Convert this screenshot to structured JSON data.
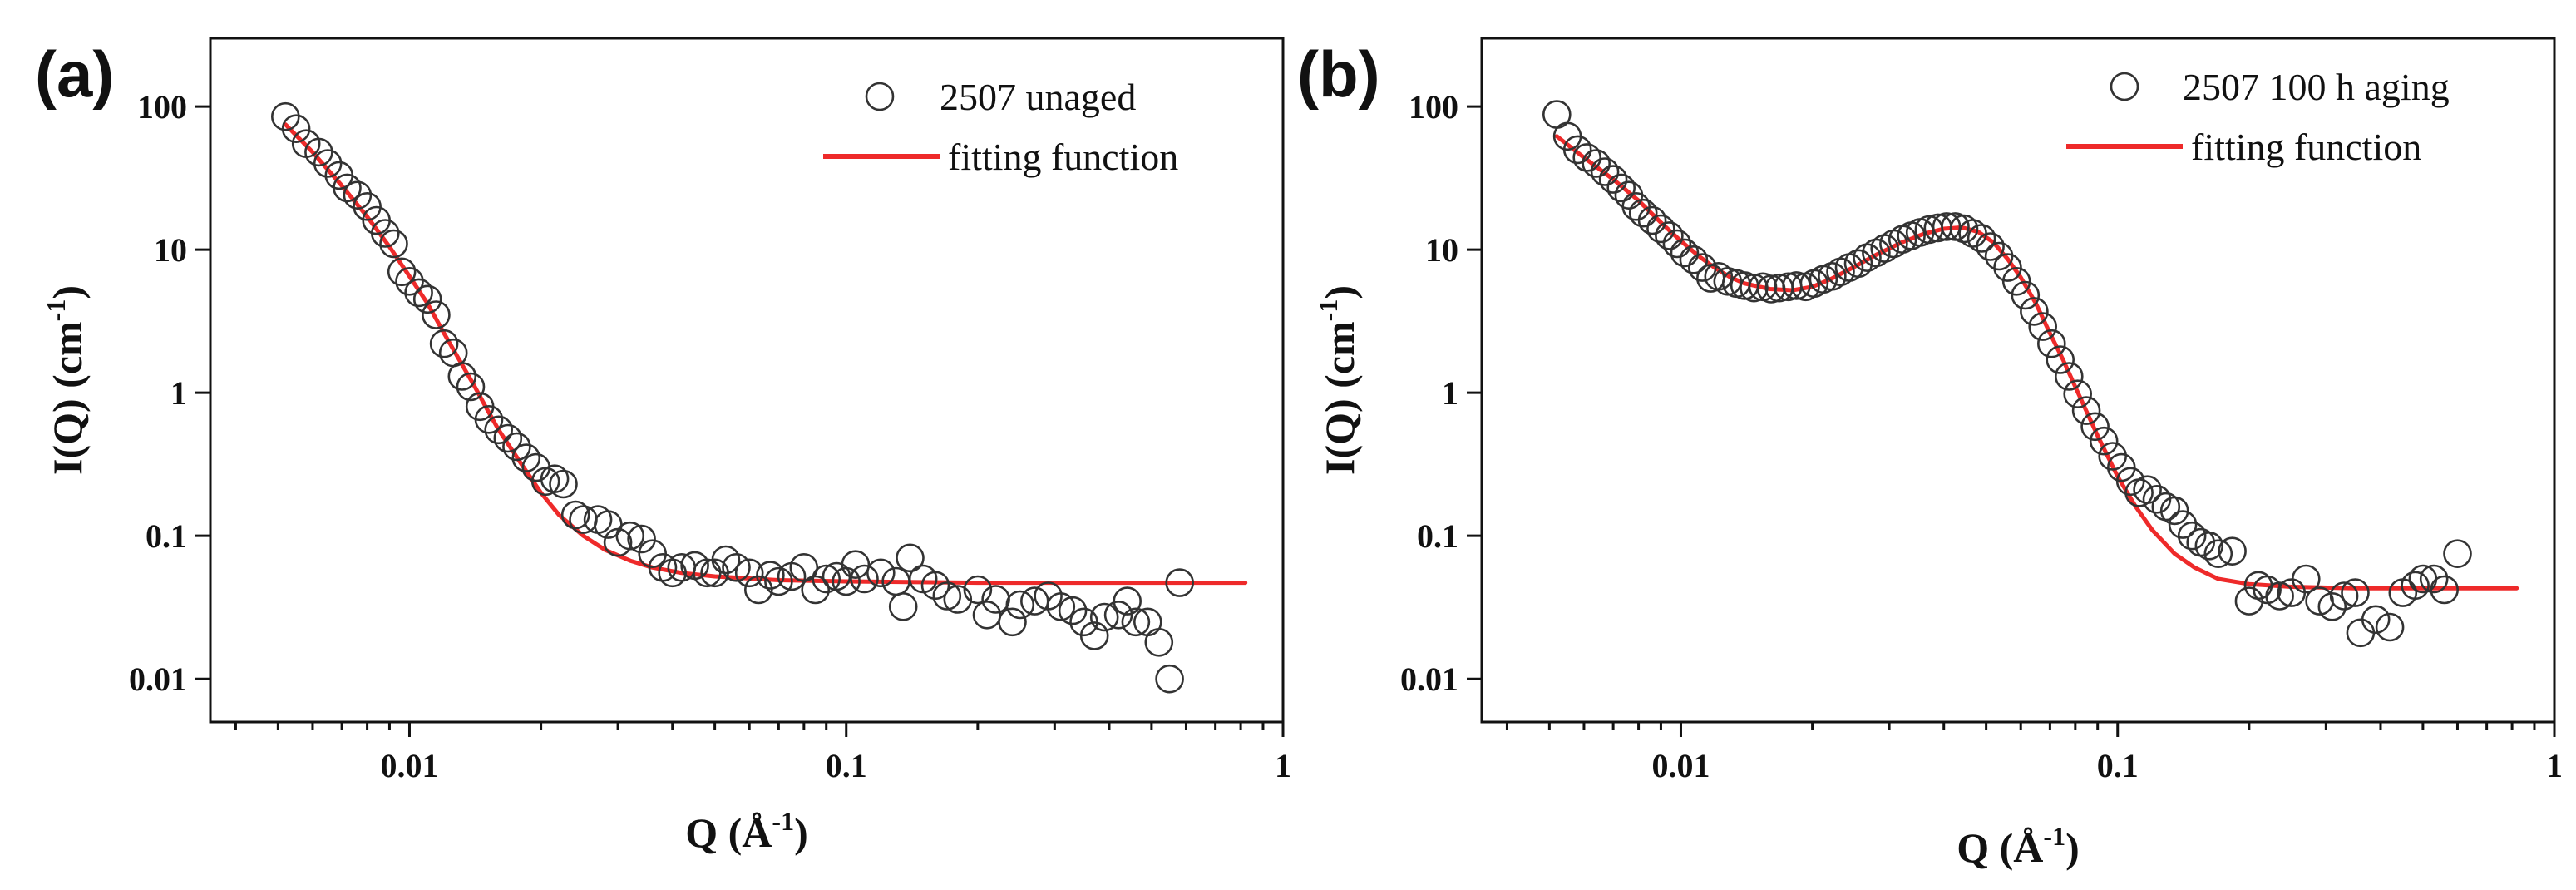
{
  "colors": {
    "fit": "#ee2a2a",
    "marker": "#333333",
    "axis": "#111111"
  },
  "chart_data": [
    {
      "type": "scatter",
      "panel_label": "(a)",
      "xscale": "log",
      "yscale": "log",
      "xlim": [
        0.0035,
        1.0
      ],
      "ylim": [
        0.005,
        300
      ],
      "xlabel": "Q (Å",
      "xlabel_sup": "-1",
      "xlabel_close": ")",
      "ylabel": "I(Q) (cm",
      "ylabel_sup": "-1",
      "ylabel_close": ")",
      "xticks": [
        0.01,
        0.1,
        1
      ],
      "xtick_labels": [
        "0.01",
        "0.1",
        "1"
      ],
      "yticks": [
        0.01,
        0.1,
        1,
        10,
        100
      ],
      "ytick_labels": [
        "0.01",
        "0.1",
        "1",
        "10",
        "100"
      ],
      "legend_position": "top-right",
      "series": [
        {
          "name": "2507 unaged",
          "kind": "markers",
          "points": [
            [
              0.0052,
              85
            ],
            [
              0.0055,
              70
            ],
            [
              0.0058,
              55
            ],
            [
              0.0062,
              48
            ],
            [
              0.0065,
              40
            ],
            [
              0.0069,
              33
            ],
            [
              0.0072,
              27
            ],
            [
              0.0076,
              24
            ],
            [
              0.008,
              20
            ],
            [
              0.0084,
              16
            ],
            [
              0.0088,
              13
            ],
            [
              0.0092,
              11
            ],
            [
              0.0096,
              7
            ],
            [
              0.01,
              6
            ],
            [
              0.0105,
              5
            ],
            [
              0.011,
              4.5
            ],
            [
              0.0115,
              3.5
            ],
            [
              0.012,
              2.2
            ],
            [
              0.0126,
              1.9
            ],
            [
              0.0132,
              1.3
            ],
            [
              0.0138,
              1.1
            ],
            [
              0.0145,
              0.8
            ],
            [
              0.0152,
              0.65
            ],
            [
              0.016,
              0.55
            ],
            [
              0.0168,
              0.48
            ],
            [
              0.0176,
              0.42
            ],
            [
              0.0185,
              0.35
            ],
            [
              0.0195,
              0.3
            ],
            [
              0.0205,
              0.24
            ],
            [
              0.0215,
              0.25
            ],
            [
              0.0225,
              0.23
            ],
            [
              0.024,
              0.14
            ],
            [
              0.025,
              0.13
            ],
            [
              0.027,
              0.13
            ],
            [
              0.0285,
              0.12
            ],
            [
              0.03,
              0.09
            ],
            [
              0.032,
              0.1
            ],
            [
              0.034,
              0.095
            ],
            [
              0.036,
              0.075
            ],
            [
              0.038,
              0.06
            ],
            [
              0.04,
              0.055
            ],
            [
              0.042,
              0.06
            ],
            [
              0.045,
              0.062
            ],
            [
              0.048,
              0.055
            ],
            [
              0.05,
              0.055
            ],
            [
              0.053,
              0.068
            ],
            [
              0.056,
              0.06
            ],
            [
              0.06,
              0.055
            ],
            [
              0.063,
              0.042
            ],
            [
              0.067,
              0.053
            ],
            [
              0.07,
              0.048
            ],
            [
              0.075,
              0.052
            ],
            [
              0.08,
              0.06
            ],
            [
              0.085,
              0.042
            ],
            [
              0.09,
              0.05
            ],
            [
              0.095,
              0.052
            ],
            [
              0.1,
              0.048
            ],
            [
              0.105,
              0.063
            ],
            [
              0.11,
              0.05
            ],
            [
              0.12,
              0.055
            ],
            [
              0.13,
              0.048
            ],
            [
              0.135,
              0.032
            ],
            [
              0.14,
              0.07
            ],
            [
              0.15,
              0.05
            ],
            [
              0.16,
              0.045
            ],
            [
              0.17,
              0.038
            ],
            [
              0.18,
              0.036
            ],
            [
              0.2,
              0.042
            ],
            [
              0.21,
              0.028
            ],
            [
              0.22,
              0.036
            ],
            [
              0.24,
              0.025
            ],
            [
              0.25,
              0.033
            ],
            [
              0.27,
              0.035
            ],
            [
              0.29,
              0.038
            ],
            [
              0.31,
              0.032
            ],
            [
              0.33,
              0.03
            ],
            [
              0.35,
              0.025
            ],
            [
              0.37,
              0.02
            ],
            [
              0.39,
              0.027
            ],
            [
              0.42,
              0.028
            ],
            [
              0.44,
              0.035
            ],
            [
              0.46,
              0.025
            ],
            [
              0.49,
              0.025
            ],
            [
              0.52,
              0.018
            ],
            [
              0.55,
              0.01
            ],
            [
              0.58,
              0.047
            ]
          ]
        },
        {
          "name": "fitting function",
          "kind": "line",
          "points": [
            [
              0.0052,
              75
            ],
            [
              0.006,
              48
            ],
            [
              0.007,
              28
            ],
            [
              0.008,
              17
            ],
            [
              0.009,
              10.5
            ],
            [
              0.01,
              6.5
            ],
            [
              0.011,
              4.2
            ],
            [
              0.012,
              2.6
            ],
            [
              0.013,
              1.7
            ],
            [
              0.014,
              1.15
            ],
            [
              0.015,
              0.78
            ],
            [
              0.016,
              0.55
            ],
            [
              0.018,
              0.32
            ],
            [
              0.02,
              0.2
            ],
            [
              0.022,
              0.14
            ],
            [
              0.025,
              0.1
            ],
            [
              0.028,
              0.08
            ],
            [
              0.032,
              0.067
            ],
            [
              0.036,
              0.06
            ],
            [
              0.042,
              0.055
            ],
            [
              0.05,
              0.052
            ],
            [
              0.07,
              0.049
            ],
            [
              0.1,
              0.048
            ],
            [
              0.2,
              0.047
            ],
            [
              0.5,
              0.047
            ],
            [
              0.82,
              0.047
            ]
          ]
        }
      ]
    },
    {
      "type": "scatter",
      "panel_label": "(b)",
      "xscale": "log",
      "yscale": "log",
      "xlim": [
        0.0035,
        1.0
      ],
      "ylim": [
        0.005,
        300
      ],
      "xlabel": "Q (Å",
      "xlabel_sup": "-1",
      "xlabel_close": ")",
      "ylabel": "I(Q) (cm",
      "ylabel_sup": "-1",
      "ylabel_close": ")",
      "xticks": [
        0.01,
        0.1,
        1
      ],
      "xtick_labels": [
        "0.01",
        "0.1",
        "1"
      ],
      "yticks": [
        0.01,
        0.1,
        1,
        10,
        100
      ],
      "ytick_labels": [
        "0.01",
        "0.1",
        "1",
        "10",
        "100"
      ],
      "legend_position": "top-right",
      "series": [
        {
          "name": "2507 100 h aging",
          "kind": "markers",
          "points": [
            [
              0.0052,
              88
            ],
            [
              0.0055,
              62
            ],
            [
              0.0058,
              50
            ],
            [
              0.0061,
              44
            ],
            [
              0.0064,
              40
            ],
            [
              0.0067,
              35
            ],
            [
              0.007,
              31
            ],
            [
              0.0073,
              27
            ],
            [
              0.0076,
              24
            ],
            [
              0.0079,
              20
            ],
            [
              0.0082,
              18
            ],
            [
              0.0086,
              16
            ],
            [
              0.009,
              14
            ],
            [
              0.0094,
              12.5
            ],
            [
              0.0098,
              11
            ],
            [
              0.0102,
              9.5
            ],
            [
              0.0107,
              8.5
            ],
            [
              0.0112,
              7.5
            ],
            [
              0.0117,
              6.3
            ],
            [
              0.0122,
              6.5
            ],
            [
              0.0128,
              6
            ],
            [
              0.0134,
              5.8
            ],
            [
              0.014,
              5.6
            ],
            [
              0.0147,
              5.4
            ],
            [
              0.0154,
              5.5
            ],
            [
              0.0161,
              5.3
            ],
            [
              0.0168,
              5.4
            ],
            [
              0.0176,
              5.5
            ],
            [
              0.0184,
              5.6
            ],
            [
              0.0193,
              5.5
            ],
            [
              0.0202,
              5.8
            ],
            [
              0.0212,
              6.2
            ],
            [
              0.0222,
              6.5
            ],
            [
              0.0232,
              7
            ],
            [
              0.0243,
              7.5
            ],
            [
              0.0255,
              8
            ],
            [
              0.0267,
              8.8
            ],
            [
              0.028,
              9.5
            ],
            [
              0.0293,
              10.2
            ],
            [
              0.0307,
              11
            ],
            [
              0.0322,
              11.8
            ],
            [
              0.0337,
              12.5
            ],
            [
              0.0353,
              13.2
            ],
            [
              0.037,
              13.8
            ],
            [
              0.0388,
              14.2
            ],
            [
              0.0406,
              14.5
            ],
            [
              0.0425,
              14.5
            ],
            [
              0.0445,
              14
            ],
            [
              0.0466,
              13
            ],
            [
              0.0488,
              12
            ],
            [
              0.0511,
              10.5
            ],
            [
              0.0535,
              9
            ],
            [
              0.056,
              7.5
            ],
            [
              0.0587,
              6
            ],
            [
              0.0615,
              4.8
            ],
            [
              0.0644,
              3.7
            ],
            [
              0.0674,
              2.9
            ],
            [
              0.0706,
              2.2
            ],
            [
              0.0739,
              1.7
            ],
            [
              0.0774,
              1.3
            ],
            [
              0.081,
              0.98
            ],
            [
              0.0848,
              0.75
            ],
            [
              0.0888,
              0.58
            ],
            [
              0.093,
              0.46
            ],
            [
              0.0974,
              0.36
            ],
            [
              0.102,
              0.3
            ],
            [
              0.107,
              0.24
            ],
            [
              0.112,
              0.2
            ],
            [
              0.117,
              0.21
            ],
            [
              0.123,
              0.18
            ],
            [
              0.129,
              0.16
            ],
            [
              0.135,
              0.15
            ],
            [
              0.141,
              0.12
            ],
            [
              0.148,
              0.1
            ],
            [
              0.155,
              0.09
            ],
            [
              0.162,
              0.085
            ],
            [
              0.17,
              0.075
            ],
            [
              0.183,
              0.078
            ],
            [
              0.2,
              0.035
            ],
            [
              0.21,
              0.045
            ],
            [
              0.22,
              0.042
            ],
            [
              0.235,
              0.038
            ],
            [
              0.25,
              0.04
            ],
            [
              0.27,
              0.05
            ],
            [
              0.29,
              0.035
            ],
            [
              0.31,
              0.032
            ],
            [
              0.33,
              0.038
            ],
            [
              0.35,
              0.04
            ],
            [
              0.36,
              0.021
            ],
            [
              0.39,
              0.026
            ],
            [
              0.42,
              0.023
            ],
            [
              0.45,
              0.04
            ],
            [
              0.48,
              0.045
            ],
            [
              0.5,
              0.05
            ],
            [
              0.53,
              0.05
            ],
            [
              0.56,
              0.042
            ],
            [
              0.6,
              0.075
            ]
          ]
        },
        {
          "name": "fitting function",
          "kind": "line",
          "points": [
            [
              0.0052,
              62
            ],
            [
              0.006,
              44
            ],
            [
              0.007,
              31
            ],
            [
              0.008,
              22
            ],
            [
              0.009,
              15.5
            ],
            [
              0.01,
              11.5
            ],
            [
              0.011,
              9
            ],
            [
              0.012,
              7.4
            ],
            [
              0.013,
              6.4
            ],
            [
              0.014,
              5.8
            ],
            [
              0.016,
              5.3
            ],
            [
              0.018,
              5.2
            ],
            [
              0.02,
              5.5
            ],
            [
              0.022,
              6.2
            ],
            [
              0.025,
              7.6
            ],
            [
              0.028,
              9.2
            ],
            [
              0.032,
              11.2
            ],
            [
              0.036,
              12.9
            ],
            [
              0.04,
              14
            ],
            [
              0.044,
              14.3
            ],
            [
              0.048,
              13.3
            ],
            [
              0.052,
              11.2
            ],
            [
              0.056,
              8.6
            ],
            [
              0.06,
              6.4
            ],
            [
              0.065,
              4.2
            ],
            [
              0.07,
              2.6
            ],
            [
              0.075,
              1.7
            ],
            [
              0.08,
              1.1
            ],
            [
              0.09,
              0.5
            ],
            [
              0.1,
              0.26
            ],
            [
              0.11,
              0.16
            ],
            [
              0.12,
              0.11
            ],
            [
              0.135,
              0.075
            ],
            [
              0.15,
              0.06
            ],
            [
              0.17,
              0.05
            ],
            [
              0.2,
              0.046
            ],
            [
              0.25,
              0.044
            ],
            [
              0.35,
              0.043
            ],
            [
              0.5,
              0.043
            ],
            [
              0.82,
              0.043
            ]
          ]
        }
      ]
    }
  ]
}
